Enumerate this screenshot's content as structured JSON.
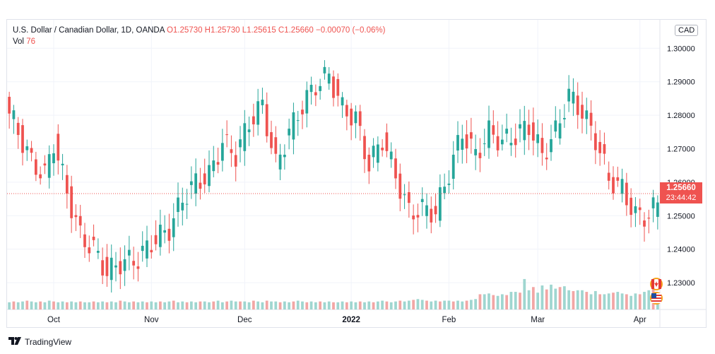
{
  "legend": {
    "title": "U.S. Dollar / Canadian Dollar, 1D, OANDA",
    "ohlc": "O1.25730 H1.25730 L1.25615 C1.25660 −0.00070 (−0.06%)",
    "vol_label": "Vol",
    "vol_value": "76"
  },
  "currency_badge": "CAD",
  "last_price": {
    "price": "1.25660",
    "countdown": "23:44:42"
  },
  "brand": {
    "name": "TradingView"
  },
  "colors": {
    "up": "#26a69a",
    "down": "#ef5350",
    "up_vol": "#9fd6d0",
    "down_vol": "#f2a6a5"
  },
  "chart_data": {
    "type": "candlestick",
    "title": "U.S. Dollar / Canadian Dollar, 1D, OANDA",
    "ylim": [
      1.222,
      1.3085
    ],
    "y_ticks": [
      "1.30000",
      "1.29000",
      "1.28000",
      "1.27000",
      "1.26000",
      "1.25000",
      "1.24000",
      "1.23000"
    ],
    "y_tick_values": [
      1.3,
      1.29,
      1.28,
      1.27,
      1.26,
      1.25,
      1.24,
      1.23
    ],
    "x_labels": [
      {
        "label": "Oct",
        "index": 10
      },
      {
        "label": "Nov",
        "index": 32
      },
      {
        "label": "Dec",
        "index": 53
      },
      {
        "label": "2022",
        "index": 77
      },
      {
        "label": "Feb",
        "index": 99
      },
      {
        "label": "Mar",
        "index": 119
      },
      {
        "label": "Apr",
        "index": 142
      }
    ],
    "last_close": 1.2566,
    "volume_max": 100,
    "volume": [
      9,
      10,
      9,
      10,
      11,
      10,
      9,
      10,
      9,
      11,
      10,
      9,
      10,
      9,
      10,
      9,
      10,
      9,
      9,
      10,
      9,
      10,
      9,
      10,
      9,
      11,
      10,
      9,
      10,
      9,
      10,
      9,
      10,
      9,
      10,
      9,
      10,
      11,
      9,
      10,
      9,
      10,
      9,
      10,
      10,
      9,
      10,
      11,
      9,
      10,
      11,
      10,
      10,
      10,
      9,
      11,
      10,
      9,
      11,
      10,
      10,
      9,
      10,
      9,
      10,
      11,
      10,
      9,
      10,
      9,
      10,
      9,
      10,
      9,
      9,
      10,
      9,
      10,
      9,
      10,
      9,
      10,
      9,
      10,
      11,
      10,
      9,
      10,
      11,
      10,
      11,
      12,
      13,
      12,
      11,
      10,
      11,
      10,
      11,
      11,
      10,
      11,
      10,
      11,
      12,
      13,
      19,
      19,
      20,
      18,
      17,
      19,
      18,
      22,
      22,
      21,
      38,
      24,
      28,
      21,
      30,
      25,
      31,
      26,
      28,
      29,
      24,
      23,
      24,
      24,
      22,
      19,
      23,
      19,
      19,
      20,
      21,
      22,
      20,
      19,
      17,
      20,
      19,
      22,
      24,
      26,
      20
    ]
  }
}
